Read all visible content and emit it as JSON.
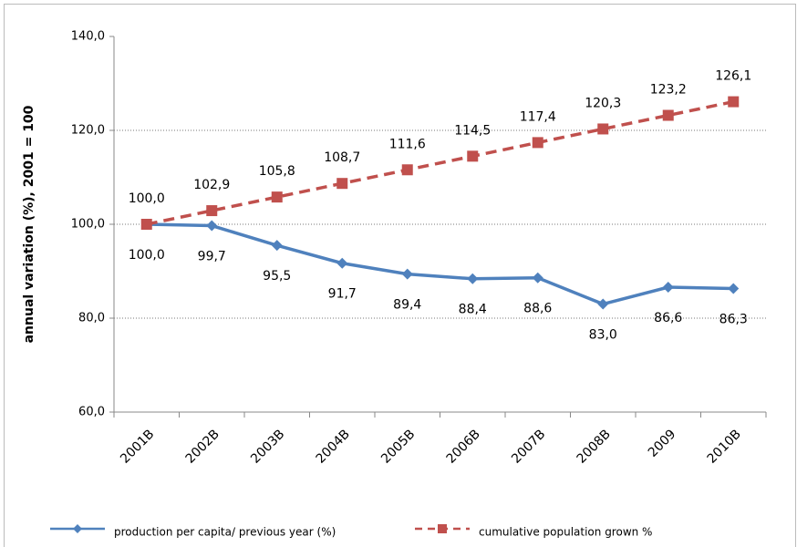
{
  "chart_data": {
    "type": "line",
    "ylabel": "annual variation   (%), 2001 = 100",
    "categories": [
      "2001B",
      "2002B",
      "2003B",
      "2004B",
      "2005B",
      "2006B",
      "2007B",
      "2008B",
      "2009",
      "2010B"
    ],
    "series": [
      {
        "name": "production per capita/ previous year (%)",
        "color": "#4f81bd",
        "marker": "diamond",
        "dash": false,
        "values": [
          100.0,
          99.7,
          95.5,
          91.7,
          89.4,
          88.4,
          88.6,
          83.0,
          86.6,
          86.3
        ],
        "value_labels": [
          "100,0",
          "99,7",
          "95,5",
          "91,7",
          "89,4",
          "88,4",
          "88,6",
          "83,0",
          "86,6",
          "86,3"
        ]
      },
      {
        "name": "cumulative population grown %",
        "color": "#c0504d",
        "marker": "square",
        "dash": true,
        "values": [
          100.0,
          102.9,
          105.8,
          108.7,
          111.6,
          114.5,
          117.4,
          120.3,
          123.2,
          126.1
        ],
        "value_labels": [
          "100,0",
          "102,9",
          "105,8",
          "108,7",
          "111,6",
          "114,5",
          "117,4",
          "120,3",
          "123,2",
          "126,1"
        ]
      }
    ],
    "ylim": [
      60,
      140
    ],
    "yticks": [
      {
        "value": 60,
        "label": "60,0"
      },
      {
        "value": 80,
        "label": "80,0"
      },
      {
        "value": 100,
        "label": "100,0"
      },
      {
        "value": 120,
        "label": "120,0"
      },
      {
        "value": 140,
        "label": "140,0"
      }
    ],
    "grid": true,
    "legend": "bottom"
  }
}
